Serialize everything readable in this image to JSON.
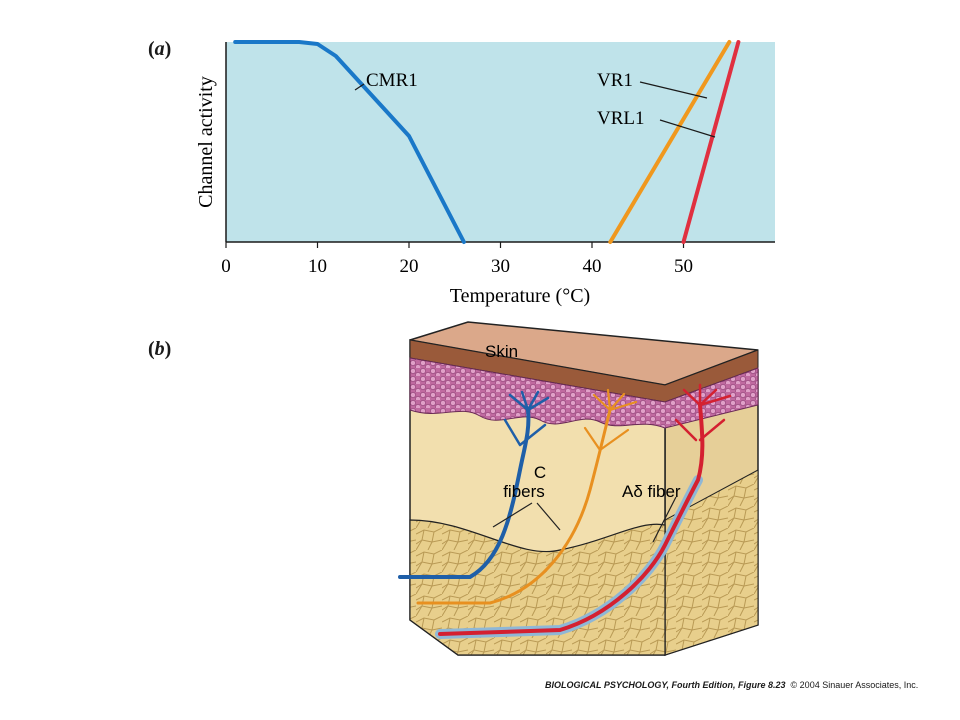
{
  "panel_a": {
    "label_open": "(",
    "label_letter": "a",
    "label_close": ")"
  },
  "panel_b": {
    "label_open": "(",
    "label_letter": "b",
    "label_close": ")",
    "skin_label": "Skin",
    "c_fibers_line1": "C",
    "c_fibers_line2": "fibers",
    "a_delta_label": "Aδ fiber"
  },
  "chart_data": {
    "type": "line",
    "xlabel": "Temperature (°C)",
    "ylabel": "Channel activity",
    "xlim": [
      0,
      60
    ],
    "xticks": [
      "0",
      "10",
      "20",
      "30",
      "40",
      "50"
    ],
    "ylim": [
      0,
      1
    ],
    "background": "#bfe3ea",
    "series": [
      {
        "name": "CMR1",
        "color": "#1a78c8",
        "points": [
          [
            1,
            1.0
          ],
          [
            8,
            1.0
          ],
          [
            10,
            0.99
          ],
          [
            12,
            0.93
          ],
          [
            14,
            0.83
          ],
          [
            20,
            0.53
          ],
          [
            26,
            0.0
          ]
        ]
      },
      {
        "name": "VR1",
        "color": "#f0981e",
        "points": [
          [
            42,
            0.0
          ],
          [
            55,
            1.0
          ]
        ]
      },
      {
        "name": "VRL1",
        "color": "#e03040",
        "points": [
          [
            50,
            0.0
          ],
          [
            56,
            1.0
          ]
        ]
      }
    ]
  },
  "caption": {
    "title": "BIOLOGICAL PSYCHOLOGY, Fourth Edition, Figure 8.23",
    "credit": "© 2004 Sinauer Associates, Inc."
  }
}
